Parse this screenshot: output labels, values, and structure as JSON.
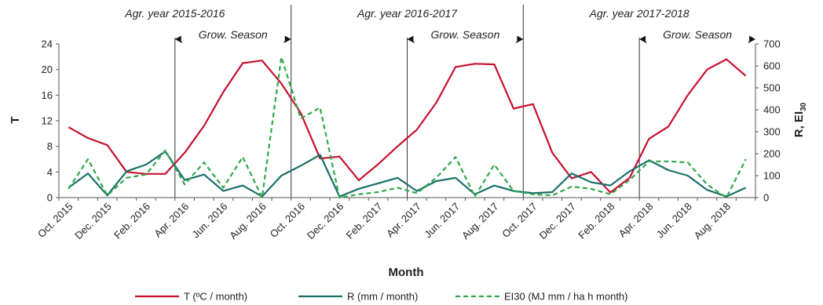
{
  "chart_data": {
    "type": "line",
    "title": "",
    "xlabel": "Month",
    "ylabel_left": "T",
    "ylabel_right": "R, EI",
    "ylabel_right_sub": "30",
    "ylim_left": [
      0,
      24
    ],
    "yticks_left": [
      "0",
      "4",
      "8",
      "12",
      "16",
      "20",
      "24"
    ],
    "ylim_right": [
      0,
      700
    ],
    "yticks_right": [
      "0",
      "100",
      "200",
      "300",
      "400",
      "500",
      "600",
      "700"
    ],
    "grid": false,
    "legend_position": "bottom",
    "x_tick_labels": [
      {
        "index": 0,
        "label": "Oct. 2015"
      },
      {
        "index": 2,
        "label": "Dec. 2015"
      },
      {
        "index": 4,
        "label": "Feb. 2016"
      },
      {
        "index": 6,
        "label": "Apr. 2016"
      },
      {
        "index": 8,
        "label": "Jun. 2016"
      },
      {
        "index": 10,
        "label": "Aug. 2016"
      },
      {
        "index": 12,
        "label": "Oct. 2016"
      },
      {
        "index": 14,
        "label": "Dec. 2016"
      },
      {
        "index": 16,
        "label": "Feb. 2017"
      },
      {
        "index": 18,
        "label": "Apr. 2017"
      },
      {
        "index": 20,
        "label": "Jun. 2017"
      },
      {
        "index": 22,
        "label": "Aug. 2017"
      },
      {
        "index": 24,
        "label": "Oct. 2017"
      },
      {
        "index": 26,
        "label": "Dec. 2017"
      },
      {
        "index": 28,
        "label": "Feb. 2018"
      },
      {
        "index": 30,
        "label": "Apr. 2018"
      },
      {
        "index": 32,
        "label": "Jun. 2018"
      },
      {
        "index": 34,
        "label": "Aug. 2018"
      }
    ],
    "agr_years": [
      {
        "label": "Agr. year 2015-2016",
        "start_index": 0,
        "end_index": 12
      },
      {
        "label": "Agr. year 2016-2017",
        "start_index": 12,
        "end_index": 24
      },
      {
        "label": "Agr. year 2017-2018",
        "start_index": 24,
        "end_index": 36
      }
    ],
    "grow_seasons": [
      {
        "label": "Grow. Season",
        "start_index": 6,
        "end_index": 12
      },
      {
        "label": "Grow. Season",
        "start_index": 18,
        "end_index": 24
      },
      {
        "label": "Grow. Season",
        "start_index": 30,
        "end_index": 36
      }
    ],
    "series": [
      {
        "name": "T (ºC / month)",
        "axis": "left",
        "color": "#c8102e",
        "dash": "",
        "values": [
          11.0,
          9.3,
          8.2,
          4.0,
          3.7,
          3.7,
          7.0,
          11.2,
          16.5,
          21.0,
          21.4,
          17.8,
          13.2,
          6.1,
          6.4,
          2.7,
          5.2,
          8.0,
          10.6,
          14.8,
          20.4,
          20.9,
          20.8,
          13.9,
          14.6,
          7.0,
          3.0,
          4.0,
          0.8,
          3.1,
          9.2,
          11.1,
          16.0,
          20.0,
          21.6,
          19.0
        ]
      },
      {
        "name": "R (mm / month)",
        "axis": "right",
        "color": "#1a6f6a",
        "dash": "",
        "values": [
          45,
          110,
          10,
          120,
          150,
          210,
          80,
          105,
          30,
          55,
          5,
          100,
          145,
          195,
          5,
          40,
          65,
          90,
          30,
          75,
          90,
          15,
          55,
          30,
          20,
          25,
          110,
          70,
          55,
          120,
          170,
          125,
          100,
          35,
          5,
          45
        ]
      },
      {
        "name": "EI30 (MJ mm / ha h month)",
        "axis": "right",
        "color": "#2ea84a",
        "dash": "6,4",
        "values": [
          40,
          175,
          10,
          90,
          105,
          215,
          60,
          160,
          45,
          185,
          0,
          640,
          360,
          410,
          0,
          15,
          25,
          45,
          20,
          90,
          185,
          5,
          150,
          30,
          15,
          10,
          50,
          40,
          15,
          80,
          165,
          165,
          160,
          60,
          0,
          175
        ]
      }
    ]
  }
}
